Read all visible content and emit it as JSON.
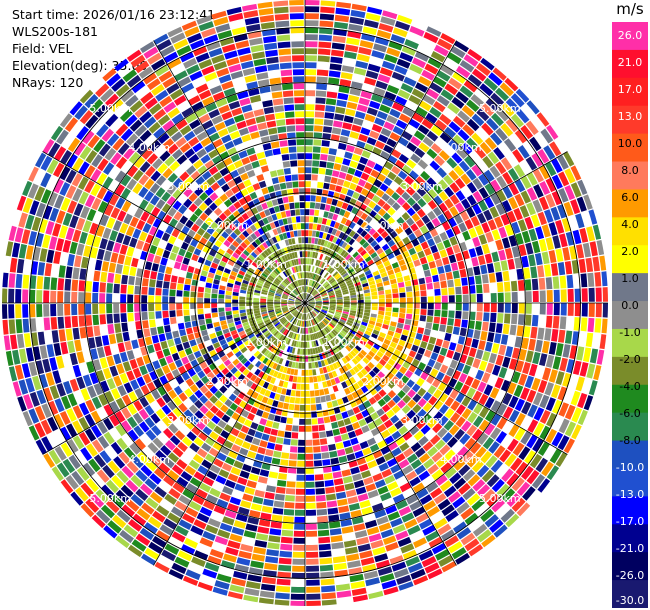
{
  "header": {
    "start_time": "Start time: 2026/01/16 23:12:41",
    "instrument": "WLS200s-181",
    "field": "Field: VEL",
    "elevation": "Elevation(deg): 35.00",
    "nrays": "NRays: 120"
  },
  "chart_data": {
    "type": "heatmap",
    "projection": "polar PPI",
    "field": "VEL",
    "n_rays": 120,
    "range_rings_km": [
      1.0,
      2.0,
      3.0,
      4.0,
      5.0
    ],
    "range_ring_labels": [
      "1.00km",
      "2.00km",
      "3.00km",
      "4.00km",
      "5.00km"
    ],
    "max_range_km": 5.5,
    "grid": true,
    "colorbar": {
      "unit": "m/s",
      "ticks": [
        "26.0",
        "21.0",
        "17.0",
        "13.0",
        "10.0",
        "8.0",
        "6.0",
        "4.0",
        "2.0",
        "1.0",
        "0.0",
        "-1.0",
        "-2.0",
        "-4.0",
        "-6.0",
        "-8.0",
        "-10.0",
        "-13.0",
        "-17.0",
        "-21.0",
        "-26.0",
        "-30.0"
      ],
      "colors": [
        "#ff2fa8",
        "#ff0f2e",
        "#ff2020",
        "#ff3a2a",
        "#ff5a1a",
        "#ff7a5c",
        "#ff9a00",
        "#ffe000",
        "#ffff00",
        "#70788a",
        "#8e8e8e",
        "#a8d84a",
        "#7a8c2a",
        "#1f8a1f",
        "#2a8a50",
        "#1e50c0",
        "#2050d0",
        "#0000ff",
        "#000090",
        "#000060",
        "#191970"
      ]
    }
  }
}
